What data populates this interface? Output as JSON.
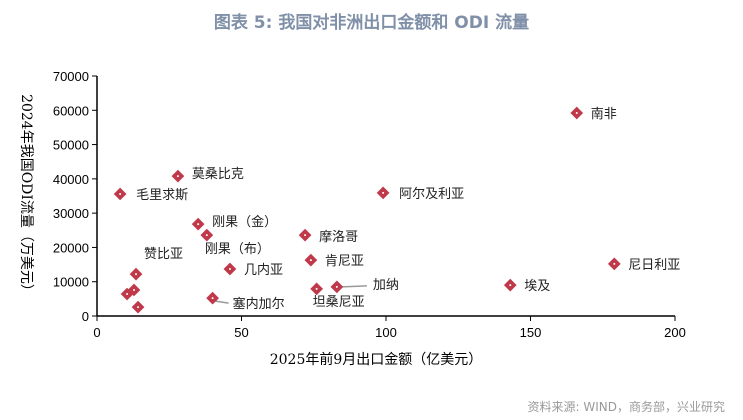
{
  "title": "图表 5:  我国对非洲出口金额和 ODI 流量",
  "source": "资料来源:   WIND，商务部，兴业研究",
  "chart_data": {
    "type": "scatter",
    "title": "图表 5:  我国对非洲出口金额和 ODI 流量",
    "xlabel": "2025年前9月出口金额（亿美元）",
    "ylabel": "2024年我国ODI流量（万美元）",
    "xlim": [
      0,
      200
    ],
    "ylim": [
      0,
      70000
    ],
    "xticks": [
      0,
      50,
      100,
      150,
      200
    ],
    "yticks": [
      0,
      10000,
      20000,
      30000,
      40000,
      50000,
      60000,
      70000
    ],
    "grid": false,
    "marker_color": "#c0394b",
    "points": [
      {
        "label": "南非",
        "x": 166,
        "y": 59200
      },
      {
        "label": "尼日利亚",
        "x": 179,
        "y": 15200
      },
      {
        "label": "埃及",
        "x": 143,
        "y": 9000
      },
      {
        "label": "阿尔及利亚",
        "x": 99,
        "y": 35900
      },
      {
        "label": "莫桑比克",
        "x": 28,
        "y": 40800
      },
      {
        "label": "毛里求斯",
        "x": 8,
        "y": 35600
      },
      {
        "label": "刚果（金）",
        "x": 35,
        "y": 26800
      },
      {
        "label": "刚果（布）",
        "x": 38,
        "y": 23600
      },
      {
        "label": "摩洛哥",
        "x": 72,
        "y": 23600
      },
      {
        "label": "肯尼亚",
        "x": 74,
        "y": 16300
      },
      {
        "label": "几内亚",
        "x": 46,
        "y": 13700
      },
      {
        "label": "加纳",
        "x": 83,
        "y": 8500
      },
      {
        "label": "坦桑尼亚",
        "x": 76,
        "y": 7900
      },
      {
        "label": "塞内加尔",
        "x": 40,
        "y": 5200
      },
      {
        "label": "赞比亚",
        "x": 13.5,
        "y": 12200
      },
      {
        "label": "",
        "x": 12.8,
        "y": 7600
      },
      {
        "label": "",
        "x": 10.4,
        "y": 6400
      },
      {
        "label": "",
        "x": 14.2,
        "y": 2600
      }
    ]
  }
}
